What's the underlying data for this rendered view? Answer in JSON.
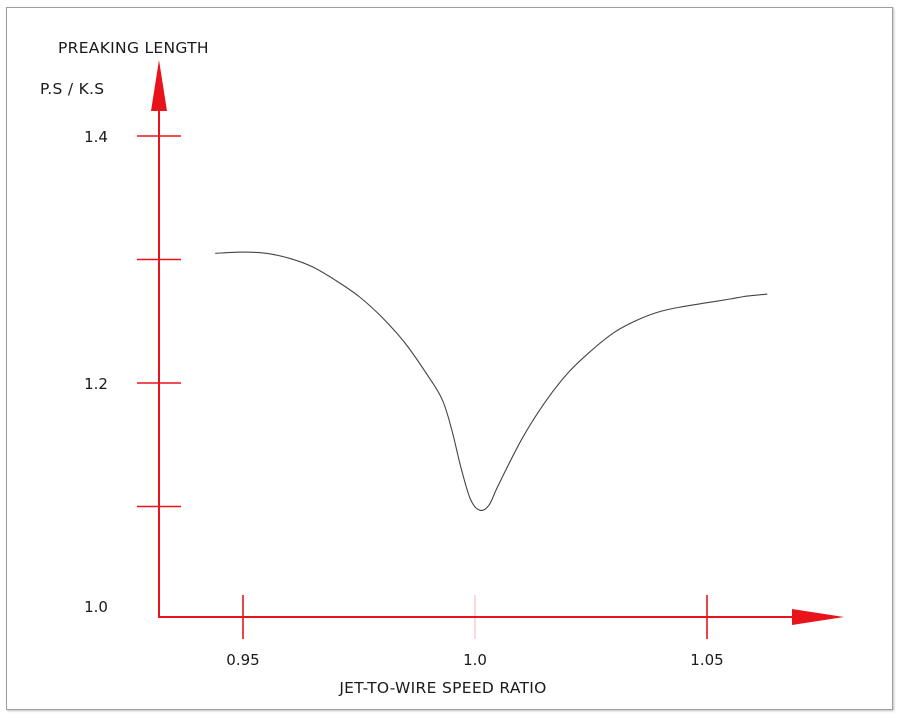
{
  "chart_data": {
    "type": "line",
    "title": "",
    "ylabel": "PREAKING LENGTH",
    "ylabel_sub": "P.S / K.S",
    "xlabel": "JET-TO-WIRE SPEED RATIO",
    "xlim": [
      0.931,
      1.08
    ],
    "ylim": [
      0.99,
      1.4
    ],
    "x_ticks": [
      {
        "value": 0.95,
        "label": "0.95"
      },
      {
        "value": 1.0,
        "label": "1.0"
      },
      {
        "value": 1.05,
        "label": "1.05"
      }
    ],
    "y_ticks": [
      {
        "value": 1.0,
        "label": "1.0"
      },
      {
        "value": 1.1,
        "label": ""
      },
      {
        "value": 1.2,
        "label": "1.2"
      },
      {
        "value": 1.3,
        "label": ""
      },
      {
        "value": 1.4,
        "label": "1.4"
      }
    ],
    "grid": false,
    "legend": "none",
    "series": [
      {
        "points": [
          [
            0.944,
            1.305
          ],
          [
            0.95,
            1.306
          ],
          [
            0.955,
            1.305
          ],
          [
            0.96,
            1.301
          ],
          [
            0.965,
            1.294
          ],
          [
            0.97,
            1.283
          ],
          [
            0.975,
            1.27
          ],
          [
            0.98,
            1.253
          ],
          [
            0.985,
            1.232
          ],
          [
            0.99,
            1.205
          ],
          [
            0.993,
            1.186
          ],
          [
            0.995,
            1.162
          ],
          [
            0.997,
            1.131
          ],
          [
            0.999,
            1.106
          ],
          [
            1.001,
            1.097
          ],
          [
            1.003,
            1.101
          ],
          [
            1.005,
            1.117
          ],
          [
            1.01,
            1.154
          ],
          [
            1.015,
            1.184
          ],
          [
            1.02,
            1.208
          ],
          [
            1.025,
            1.226
          ],
          [
            1.03,
            1.241
          ],
          [
            1.035,
            1.251
          ],
          [
            1.04,
            1.258
          ],
          [
            1.045,
            1.262
          ],
          [
            1.05,
            1.265
          ],
          [
            1.055,
            1.268
          ],
          [
            1.058,
            1.27
          ],
          [
            1.063,
            1.272
          ]
        ]
      }
    ],
    "colors": {
      "axis": "#e8131b",
      "curve": "#444444",
      "text": "#1a1a1a"
    }
  }
}
